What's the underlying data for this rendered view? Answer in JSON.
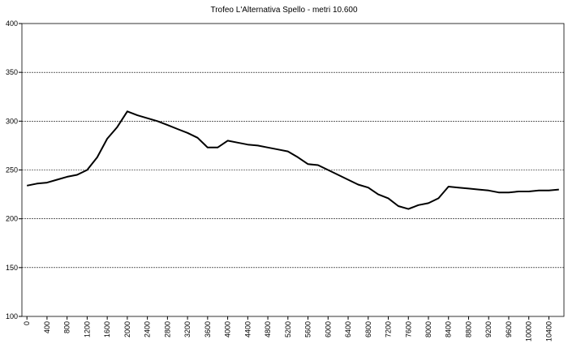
{
  "chart_data": {
    "type": "line",
    "title": "Trofeo L'Alternativa  Spello - metri 10.600",
    "x": [
      0,
      200,
      400,
      600,
      800,
      1000,
      1200,
      1400,
      1600,
      1800,
      2000,
      2200,
      2400,
      2600,
      2800,
      3000,
      3200,
      3400,
      3600,
      3800,
      4000,
      4200,
      4400,
      4600,
      4800,
      5000,
      5200,
      5400,
      5600,
      5800,
      6000,
      6200,
      6400,
      6600,
      6800,
      7000,
      7200,
      7400,
      7600,
      7800,
      8000,
      8200,
      8400,
      8600,
      8800,
      9000,
      9200,
      9400,
      9600,
      9800,
      10000,
      10200,
      10400,
      10600
    ],
    "series": [
      {
        "color": "#000000",
        "values": [
          234,
          236,
          237,
          240,
          243,
          245,
          250,
          263,
          282,
          294,
          310,
          306,
          303,
          300,
          296,
          292,
          288,
          283,
          273,
          273,
          280,
          278,
          276,
          275,
          273,
          271,
          269,
          263,
          256,
          255,
          250,
          245,
          240,
          235,
          232,
          225,
          221,
          213,
          210,
          214,
          216,
          221,
          233,
          232,
          231,
          230,
          229,
          227,
          227,
          228,
          228,
          229,
          229,
          230
        ]
      }
    ],
    "xlim": [
      -100,
      10700
    ],
    "xticks": [
      0,
      400,
      800,
      1200,
      1600,
      2000,
      2400,
      2800,
      3200,
      3600,
      4000,
      4400,
      4800,
      5200,
      5600,
      6000,
      6400,
      6800,
      7200,
      7600,
      8000,
      8400,
      8800,
      9200,
      9600,
      10000,
      10400
    ],
    "ylim": [
      100,
      400
    ],
    "yticks": [
      100,
      150,
      200,
      250,
      300,
      350,
      400
    ],
    "grid": true
  }
}
